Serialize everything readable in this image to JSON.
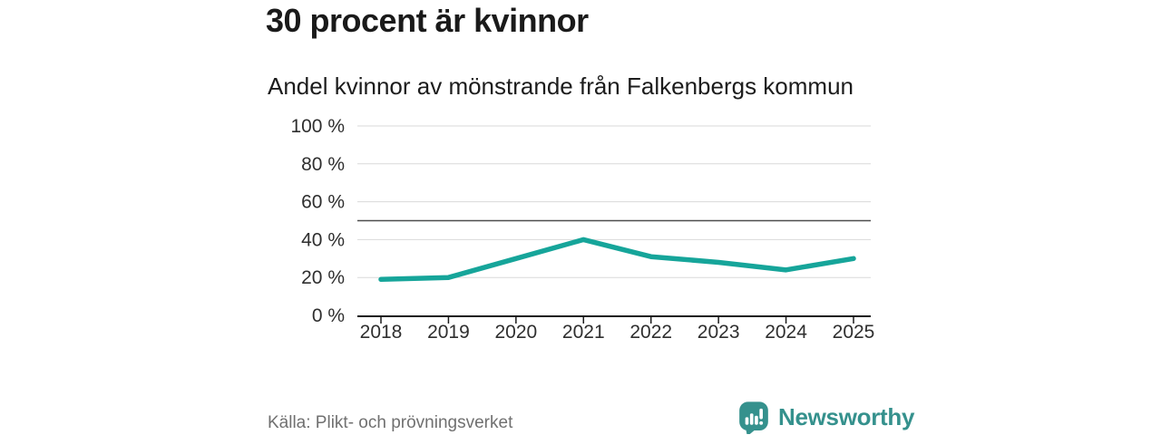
{
  "header": {
    "title": "30 procent är kvinnor",
    "subtitle": "Andel kvinnor av mönstrande från Falkenbergs kommun"
  },
  "chart_data": {
    "type": "line",
    "title": "30 procent är kvinnor",
    "subtitle": "Andel kvinnor av mönstrande från Falkenbergs kommun",
    "x": [
      2018,
      2019,
      2020,
      2021,
      2022,
      2023,
      2024,
      2025
    ],
    "series": [
      {
        "name": "Andel kvinnor av mönstrande",
        "values": [
          19,
          20,
          30,
          40,
          31,
          28,
          24,
          30
        ]
      }
    ],
    "ylim": [
      0,
      100
    ],
    "yticks": [
      0,
      20,
      40,
      60,
      80,
      100
    ],
    "ytick_labels": [
      "0 %",
      "20 %",
      "40 %",
      "60 %",
      "80 %",
      "100 %"
    ],
    "reference_line": 50,
    "grid": "horizontal",
    "legend": "none",
    "line_color": "#16a59a",
    "grid_color": "#d9d9d9",
    "reference_line_color": "#4d4d4d",
    "axis_color": "#1a1a1a",
    "tick_label_color": "#2f2f2f"
  },
  "footer": {
    "source": "Källa: Plikt- och prövningsverket",
    "brand": "Newsworthy",
    "brand_color": "#35918d",
    "brand_icon": "newsworthy-speech-bubble-bar-chart-icon"
  }
}
